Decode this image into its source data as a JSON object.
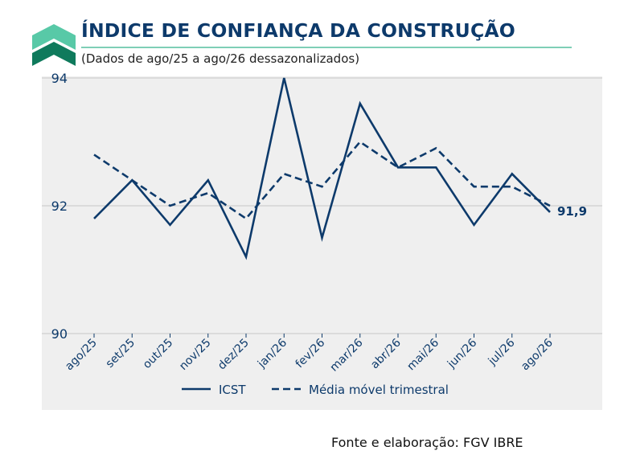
{
  "header": {
    "title": "ÍNDICE DE CONFIANÇA DA CONSTRUÇÃO",
    "subtitle": "(Dados de ago/25 a ago/26 dessazonalizados)"
  },
  "footer": {
    "source": "Fonte e elaboração: FGV IBRE"
  },
  "colors": {
    "series": "#0d3a6b",
    "plot_background": "#efefef",
    "accent_rule": "#7fcfb6",
    "logo_light": "#58c9a7",
    "logo_dark": "#0f7a5c"
  },
  "chart_data": {
    "type": "line",
    "categories": [
      "ago/25",
      "set/25",
      "out/25",
      "nov/25",
      "dez/25",
      "jan/26",
      "fev/26",
      "mar/26",
      "abr/26",
      "mai/26",
      "jun/26",
      "jul/26",
      "ago/26"
    ],
    "series": [
      {
        "name": "ICST",
        "style": "solid",
        "values": [
          91.8,
          92.4,
          91.7,
          92.4,
          91.2,
          94.0,
          91.5,
          93.6,
          92.6,
          92.6,
          91.7,
          92.5,
          91.9
        ]
      },
      {
        "name": "Média móvel trimestral",
        "style": "dashed",
        "values": [
          92.8,
          92.4,
          92.0,
          92.2,
          91.8,
          92.5,
          92.3,
          93.0,
          92.6,
          92.9,
          92.3,
          92.3,
          92.0
        ]
      }
    ],
    "yticks": [
      "90",
      "92",
      "94"
    ],
    "ylim": [
      90,
      94
    ],
    "end_label": "91,9",
    "grid": "horizontal major lines",
    "legend": "bottom-center"
  }
}
